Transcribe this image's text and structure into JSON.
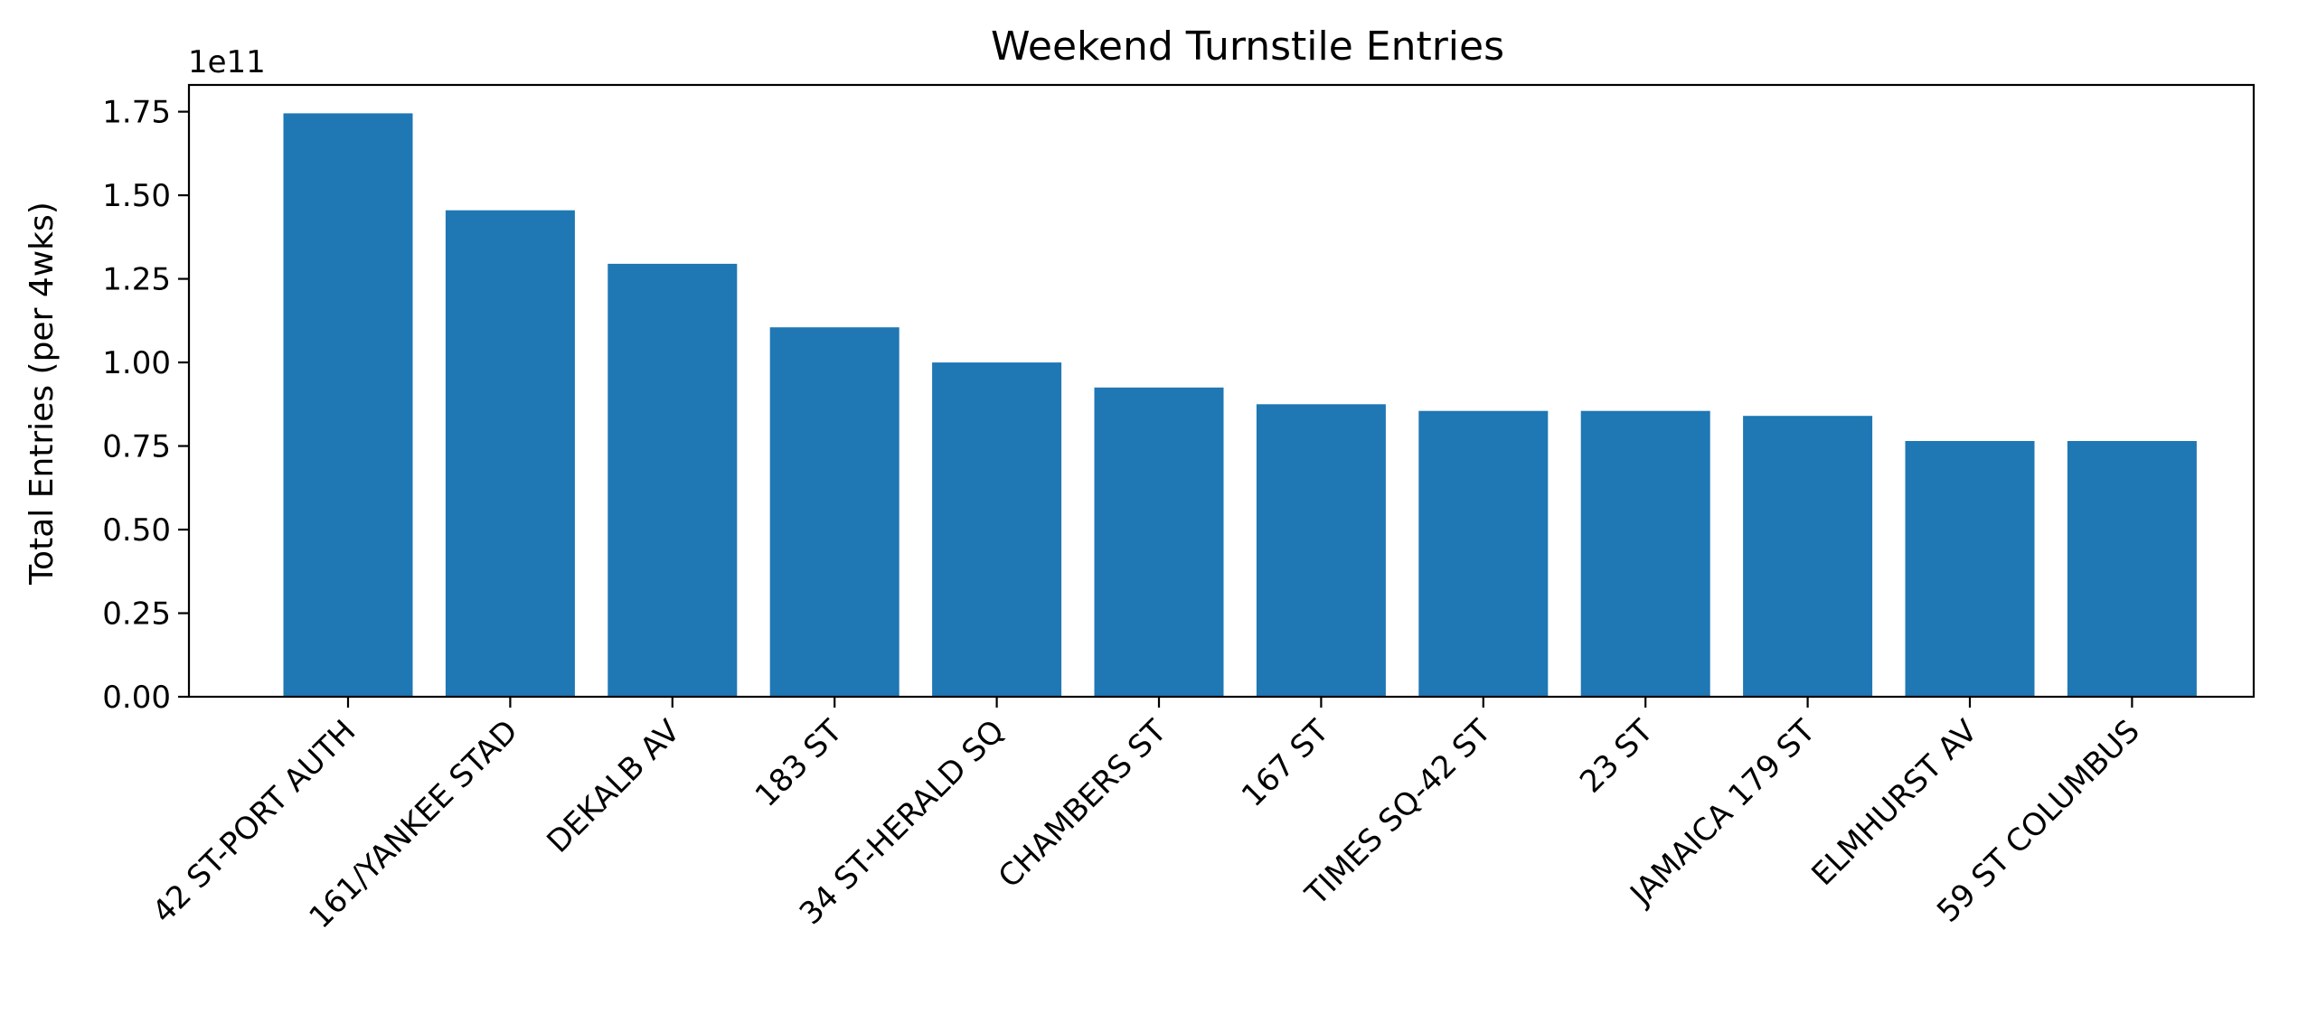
{
  "chart_data": {
    "type": "bar",
    "title": "Weekend Turnstile Entries",
    "ylabel": "Total Entries (per 4wks)",
    "xlabel": "",
    "y_offset_label": "1e11",
    "y_scale": 100000000000,
    "ylim": [
      0,
      1.83
    ],
    "y_ticks": [
      0.0,
      0.25,
      0.5,
      0.75,
      1.0,
      1.25,
      1.5,
      1.75
    ],
    "y_tick_labels": [
      "0.00",
      "0.25",
      "0.50",
      "0.75",
      "1.00",
      "1.25",
      "1.50",
      "1.75"
    ],
    "categories": [
      "42 ST-PORT AUTH",
      "161/YANKEE STAD",
      "DEKALB AV",
      "183 ST",
      "34 ST-HERALD SQ",
      "CHAMBERS ST",
      "167 ST",
      "TIMES SQ-42 ST",
      "23 ST",
      "JAMAICA 179 ST",
      "ELMHURST AV",
      "59 ST COLUMBUS"
    ],
    "values": [
      1.745,
      1.455,
      1.295,
      1.105,
      1.0,
      0.925,
      0.875,
      0.855,
      0.855,
      0.84,
      0.765,
      0.765
    ],
    "bar_color": "#1f77b4",
    "grid": false,
    "legend": "none"
  }
}
